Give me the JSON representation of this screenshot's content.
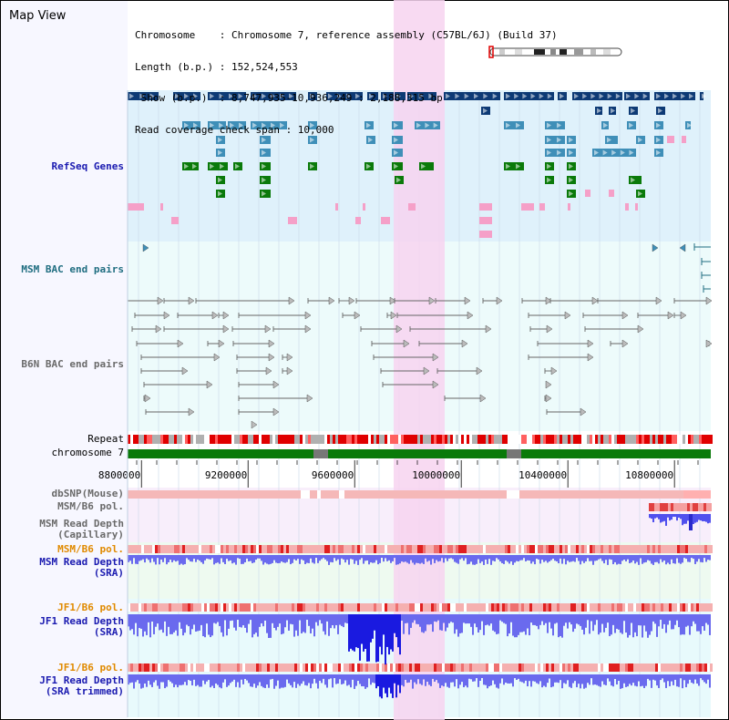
{
  "view_title": "Map View",
  "header": {
    "line1": "Chromosome    : Chromosome 7, reference assembly (C57BL/6J) (Build 37)",
    "line2": "Length (b.p.) : 152,524,553",
    "line3": " Show (b.p.)  : 8,747,935-10,936,249 : 2,188,315 bp",
    "line4": "Read coverage check span : 10,000"
  },
  "tracks": {
    "refseq": "RefSeq Genes",
    "msm_bac": "MSM BAC end pairs",
    "b6n_bac": "B6N BAC end pairs",
    "repeat": "Repeat",
    "chromosome": "chromosome 7",
    "dbsnp": "dbSNP(Mouse)",
    "msm_b6_pol_1": "MSM/B6 pol.",
    "msm_depth_cap_1": "MSM Read Depth",
    "msm_depth_cap_2": "(Capillary)",
    "msm_b6_pol_2": "MSM/B6 pol.",
    "msm_depth_sra_1": "MSM Read Depth",
    "msm_depth_sra_2": "(SRA)",
    "jf1_pol_1": "JF1/B6 pol.",
    "jf1_depth_sra_1": "JF1 Read Depth",
    "jf1_depth_sra_2": "(SRA)",
    "jf1_pol_2": "JF1/B6 pol.",
    "jf1_depth_trim_1": "JF1 Read Depth",
    "jf1_depth_trim_2": "(SRA trimmed)"
  },
  "axis": {
    "ticks": [
      8800000,
      9200000,
      9600000,
      10000000,
      10400000,
      10800000
    ],
    "range": [
      8747935,
      10936249
    ]
  },
  "colors": {
    "refseq_bg": "#dff1fb",
    "bac_bg": "#edfbfb",
    "highlight": "#f7d3f0",
    "gene_navy": "#0d3a75",
    "gene_steel": "#3f8fb8",
    "gene_green": "#0a7a0a",
    "gene_pink": "#f5a0c8",
    "chrom_green": "#0a7a0a",
    "repeat_red": "#e00000",
    "depth_blue": "#5050ee"
  }
}
